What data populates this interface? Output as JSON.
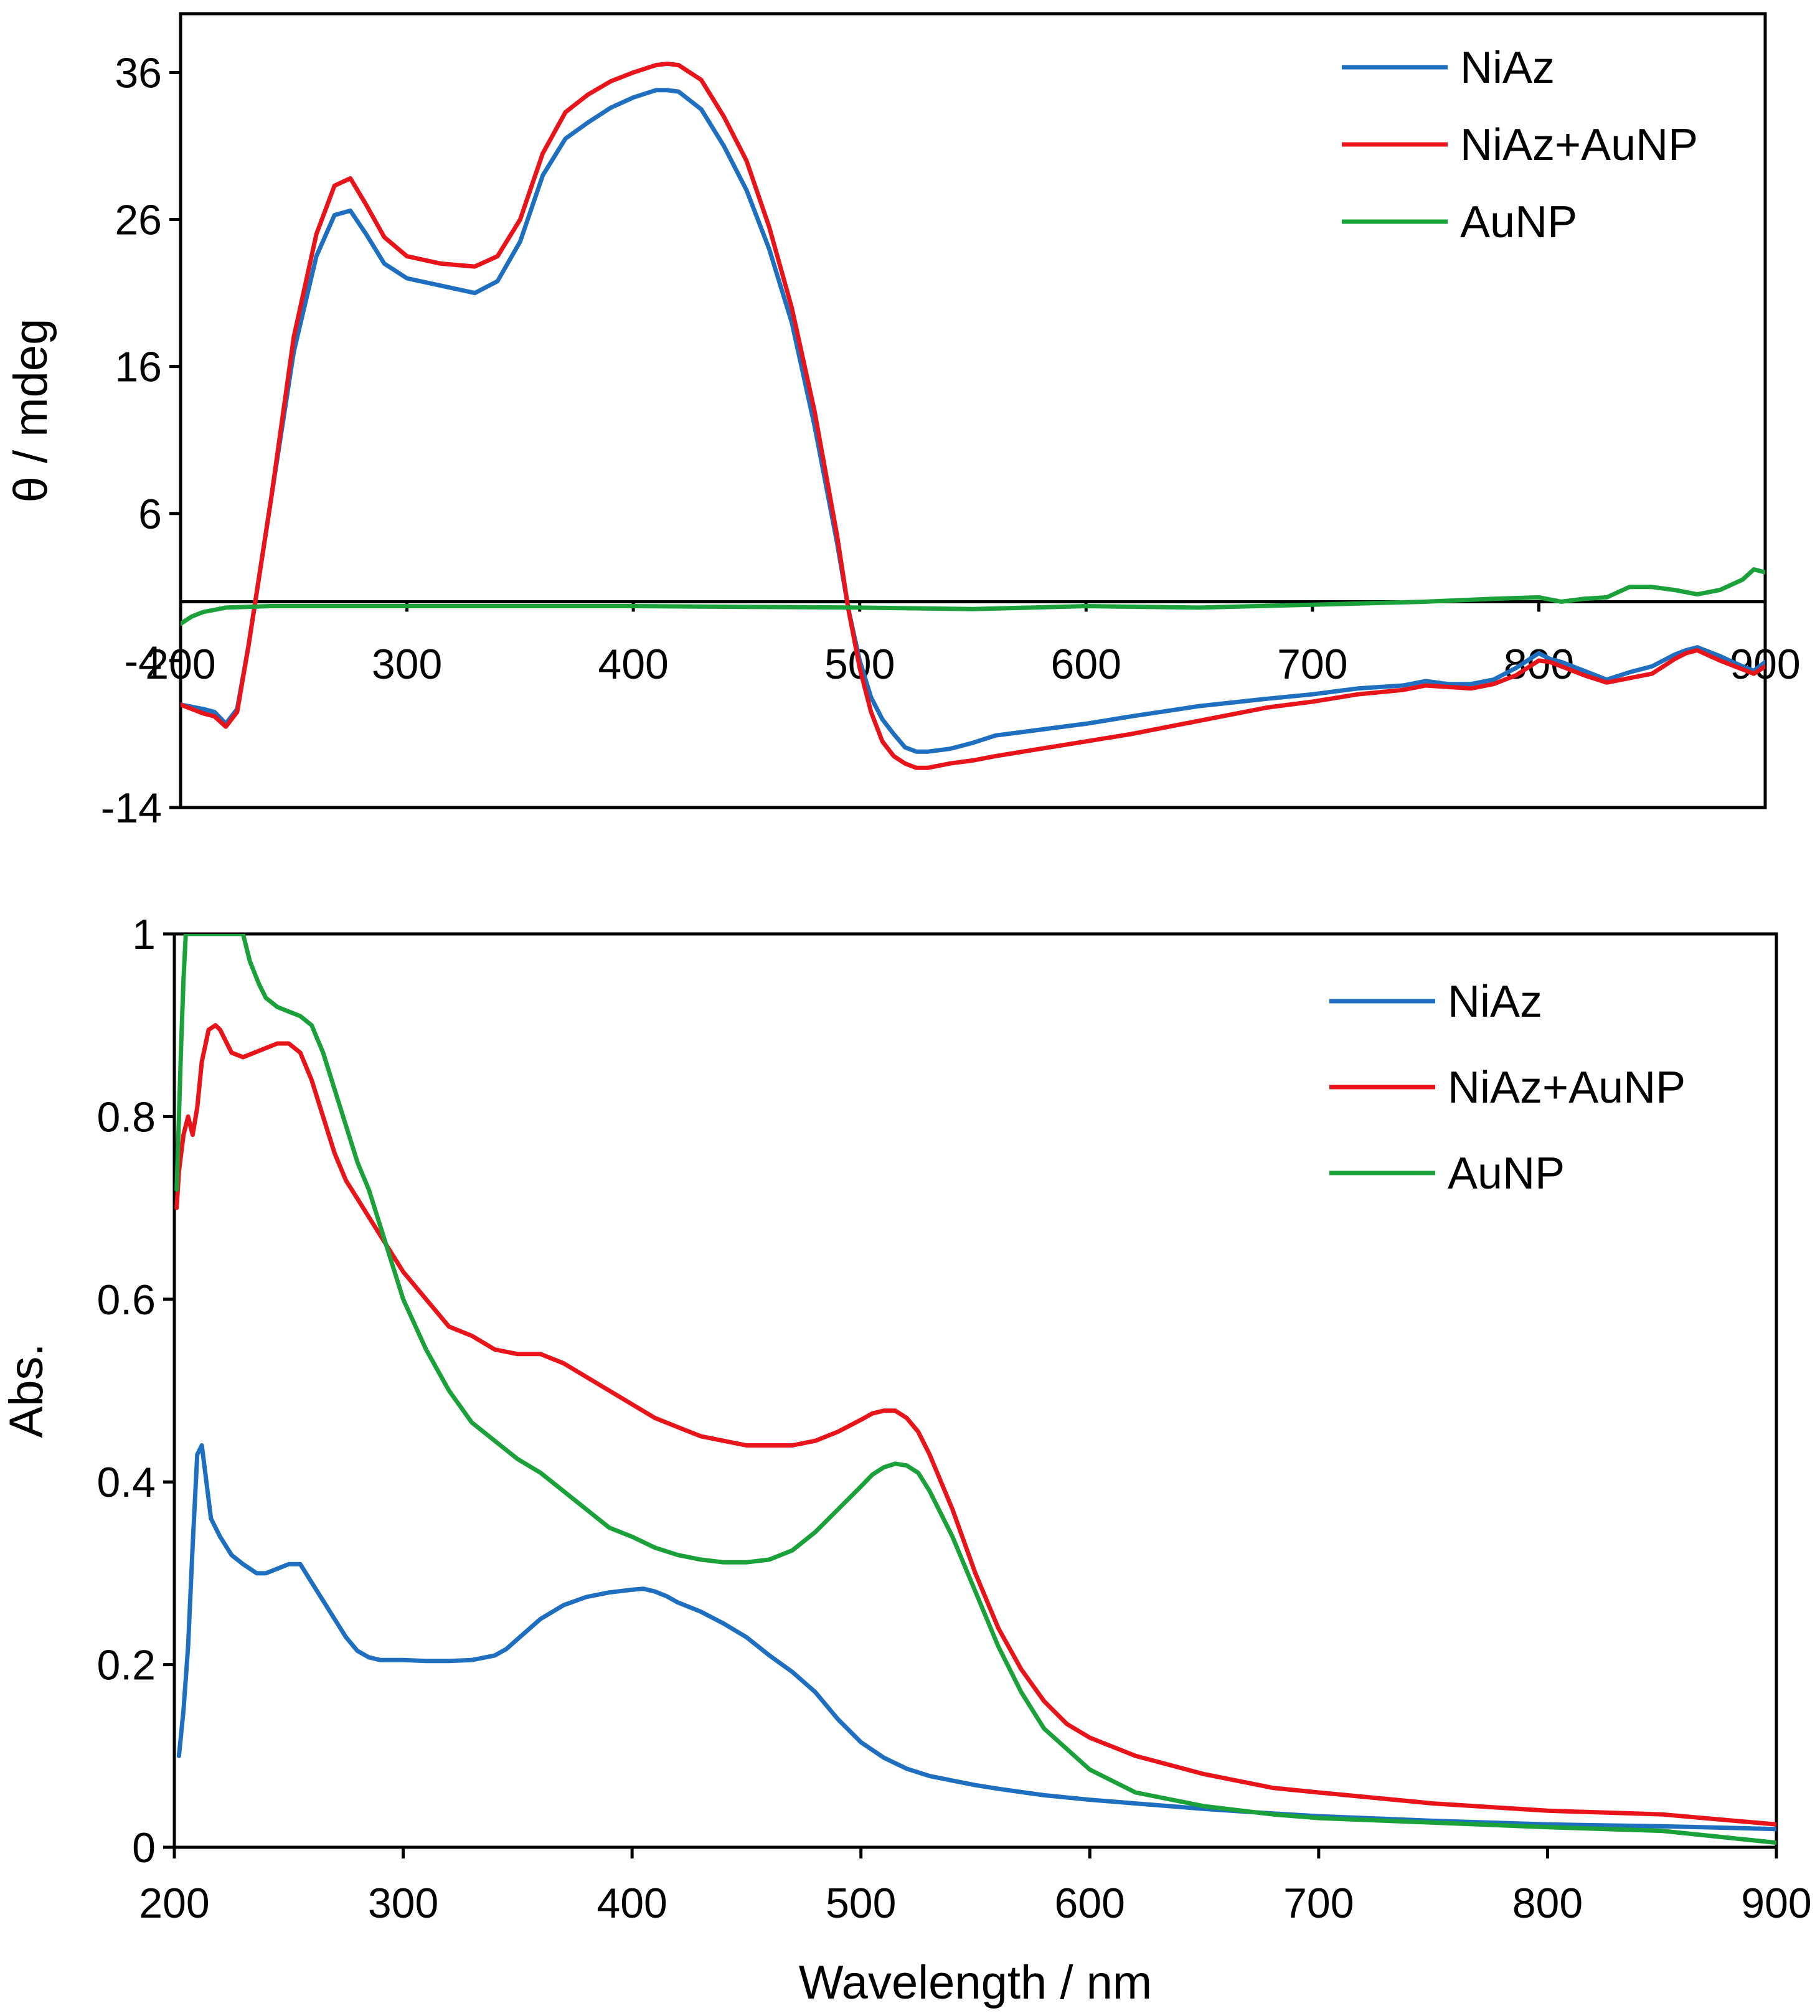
{
  "chart_data": [
    {
      "type": "line",
      "title": "",
      "xlabel": "",
      "ylabel": "θ / mdeg",
      "xlim": [
        200,
        900
      ],
      "ylim": [
        -14,
        40
      ],
      "xticks": [
        200,
        300,
        400,
        500,
        600,
        700,
        800,
        900
      ],
      "yticks": [
        -14,
        -4,
        6,
        16,
        26,
        36
      ],
      "grid": false,
      "zero_line": true,
      "legend_position": "top-right",
      "series": [
        {
          "name": "NiAz",
          "color": "#1f6fc1",
          "x": [
            200,
            210,
            215,
            220,
            225,
            230,
            240,
            250,
            260,
            268,
            275,
            282,
            290,
            300,
            315,
            330,
            340,
            350,
            360,
            370,
            380,
            390,
            400,
            410,
            415,
            420,
            430,
            440,
            450,
            460,
            470,
            480,
            490,
            495,
            500,
            505,
            510,
            515,
            520,
            525,
            530,
            540,
            550,
            560,
            580,
            600,
            620,
            650,
            680,
            700,
            720,
            740,
            750,
            760,
            770,
            780,
            790,
            800,
            805,
            810,
            820,
            830,
            840,
            850,
            860,
            865,
            870,
            880,
            890,
            895,
            900
          ],
          "values": [
            -7,
            -7.3,
            -7.5,
            -8.3,
            -7.3,
            -3,
            7,
            17,
            23.5,
            26.3,
            26.6,
            25,
            23,
            22,
            21.5,
            21,
            21.8,
            24.5,
            29,
            31.5,
            32.6,
            33.6,
            34.3,
            34.8,
            34.8,
            34.7,
            33.5,
            31,
            28,
            24,
            19,
            12,
            4,
            -0.5,
            -4,
            -6.5,
            -8,
            -9,
            -9.9,
            -10.2,
            -10.2,
            -10,
            -9.6,
            -9.1,
            -8.7,
            -8.3,
            -7.8,
            -7.1,
            -6.6,
            -6.3,
            -5.9,
            -5.7,
            -5.4,
            -5.6,
            -5.6,
            -5.3,
            -4.5,
            -3.5,
            -3.9,
            -4.1,
            -4.7,
            -5.3,
            -4.8,
            -4.4,
            -3.6,
            -3.3,
            -3.1,
            -3.7,
            -4.4,
            -4.7,
            -4.1
          ]
        },
        {
          "name": "NiAz+AuNP",
          "color": "#e8141a",
          "x": [
            200,
            210,
            215,
            220,
            225,
            230,
            240,
            250,
            260,
            268,
            275,
            282,
            290,
            300,
            315,
            330,
            340,
            350,
            360,
            370,
            380,
            390,
            400,
            410,
            415,
            420,
            430,
            440,
            450,
            460,
            470,
            480,
            490,
            495,
            500,
            505,
            510,
            515,
            520,
            525,
            530,
            540,
            550,
            560,
            580,
            600,
            620,
            650,
            680,
            700,
            720,
            740,
            750,
            760,
            770,
            780,
            790,
            800,
            805,
            810,
            820,
            830,
            840,
            850,
            860,
            865,
            870,
            880,
            890,
            895,
            900
          ],
          "values": [
            -7,
            -7.6,
            -7.8,
            -8.5,
            -7.5,
            -3,
            7,
            18,
            25,
            28.3,
            28.8,
            27,
            24.8,
            23.5,
            23,
            22.8,
            23.5,
            26,
            30.5,
            33.3,
            34.5,
            35.4,
            36,
            36.5,
            36.6,
            36.5,
            35.5,
            33,
            30,
            25.5,
            20,
            13,
            4.5,
            -0.5,
            -4.5,
            -7.5,
            -9.5,
            -10.5,
            -11,
            -11.3,
            -11.3,
            -11,
            -10.8,
            -10.5,
            -10,
            -9.5,
            -9,
            -8.1,
            -7.2,
            -6.8,
            -6.3,
            -6,
            -5.7,
            -5.8,
            -5.9,
            -5.6,
            -5,
            -4,
            -4.1,
            -4.4,
            -5,
            -5.5,
            -5.2,
            -4.9,
            -3.9,
            -3.5,
            -3.3,
            -4,
            -4.6,
            -4.9,
            -4.4
          ]
        },
        {
          "name": "AuNP",
          "color": "#1aa13a",
          "x": [
            200,
            205,
            210,
            220,
            240,
            300,
            400,
            450,
            500,
            550,
            600,
            650,
            700,
            750,
            780,
            800,
            810,
            820,
            830,
            840,
            850,
            860,
            870,
            880,
            890,
            895,
            900
          ],
          "values": [
            -1.5,
            -1,
            -0.7,
            -0.4,
            -0.3,
            -0.3,
            -0.3,
            -0.35,
            -0.4,
            -0.5,
            -0.3,
            -0.4,
            -0.2,
            0,
            0.2,
            0.3,
            0,
            0.2,
            0.3,
            1,
            1,
            0.8,
            0.5,
            0.8,
            1.5,
            2.2,
            2
          ]
        }
      ]
    },
    {
      "type": "line",
      "title": "",
      "xlabel": "Wavelength / nm",
      "ylabel": "Abs.",
      "xlim": [
        200,
        900
      ],
      "ylim": [
        0,
        1
      ],
      "xticks": [
        200,
        300,
        400,
        500,
        600,
        700,
        800,
        900
      ],
      "yticks": [
        0,
        0.2,
        0.4,
        0.6,
        0.8,
        1
      ],
      "grid": false,
      "legend_position": "top-right",
      "series": [
        {
          "name": "NiAz",
          "color": "#1f6fc1",
          "x": [
            202,
            204,
            206,
            208,
            210,
            212,
            214,
            216,
            220,
            225,
            230,
            236,
            240,
            245,
            250,
            255,
            260,
            265,
            270,
            275,
            280,
            285,
            290,
            300,
            310,
            320,
            330,
            340,
            345,
            350,
            360,
            370,
            380,
            390,
            400,
            405,
            410,
            415,
            420,
            430,
            440,
            450,
            460,
            470,
            480,
            490,
            500,
            510,
            520,
            530,
            540,
            550,
            560,
            580,
            600,
            620,
            650,
            680,
            700,
            750,
            800,
            850,
            900
          ],
          "values": [
            0.1,
            0.15,
            0.22,
            0.33,
            0.43,
            0.44,
            0.4,
            0.36,
            0.34,
            0.32,
            0.31,
            0.3,
            0.3,
            0.305,
            0.31,
            0.31,
            0.29,
            0.27,
            0.25,
            0.23,
            0.215,
            0.208,
            0.205,
            0.205,
            0.204,
            0.204,
            0.205,
            0.21,
            0.217,
            0.228,
            0.25,
            0.265,
            0.274,
            0.279,
            0.282,
            0.283,
            0.28,
            0.275,
            0.268,
            0.258,
            0.245,
            0.23,
            0.21,
            0.192,
            0.17,
            0.14,
            0.115,
            0.098,
            0.086,
            0.078,
            0.073,
            0.068,
            0.064,
            0.057,
            0.052,
            0.048,
            0.042,
            0.037,
            0.034,
            0.029,
            0.025,
            0.023,
            0.02
          ]
        },
        {
          "name": "NiAz+AuNP",
          "color": "#e8141a",
          "x": [
            201,
            202,
            204,
            206,
            208,
            210,
            212,
            215,
            218,
            220,
            225,
            230,
            235,
            240,
            245,
            250,
            255,
            260,
            265,
            270,
            275,
            280,
            285,
            290,
            300,
            310,
            320,
            330,
            340,
            350,
            360,
            365,
            370,
            380,
            390,
            400,
            410,
            420,
            430,
            440,
            450,
            460,
            470,
            480,
            490,
            500,
            505,
            510,
            515,
            520,
            525,
            530,
            540,
            550,
            560,
            570,
            580,
            590,
            600,
            620,
            650,
            680,
            700,
            750,
            800,
            850,
            900
          ],
          "values": [
            0.7,
            0.74,
            0.78,
            0.8,
            0.78,
            0.81,
            0.86,
            0.895,
            0.9,
            0.895,
            0.87,
            0.865,
            0.87,
            0.875,
            0.88,
            0.88,
            0.87,
            0.84,
            0.8,
            0.76,
            0.73,
            0.71,
            0.69,
            0.67,
            0.63,
            0.6,
            0.57,
            0.56,
            0.545,
            0.54,
            0.54,
            0.535,
            0.53,
            0.515,
            0.5,
            0.485,
            0.47,
            0.46,
            0.45,
            0.445,
            0.44,
            0.44,
            0.44,
            0.445,
            0.455,
            0.468,
            0.475,
            0.478,
            0.478,
            0.47,
            0.455,
            0.43,
            0.37,
            0.3,
            0.24,
            0.195,
            0.16,
            0.135,
            0.12,
            0.1,
            0.08,
            0.065,
            0.06,
            0.048,
            0.04,
            0.036,
            0.025
          ]
        },
        {
          "name": "AuNP",
          "color": "#1aa13a",
          "x": [
            201,
            202,
            203,
            204,
            205,
            206,
            210,
            220,
            225,
            230,
            233,
            237,
            240,
            245,
            250,
            255,
            260,
            265,
            270,
            275,
            280,
            285,
            290,
            300,
            310,
            320,
            330,
            340,
            350,
            360,
            370,
            380,
            390,
            400,
            410,
            420,
            430,
            440,
            450,
            460,
            470,
            480,
            490,
            500,
            505,
            510,
            515,
            520,
            525,
            530,
            540,
            550,
            560,
            570,
            580,
            600,
            620,
            650,
            680,
            700,
            750,
            800,
            850,
            900
          ],
          "values": [
            0.72,
            0.8,
            0.88,
            0.95,
            1,
            1,
            1,
            1,
            1,
            1,
            0.97,
            0.945,
            0.93,
            0.92,
            0.915,
            0.91,
            0.9,
            0.87,
            0.83,
            0.79,
            0.75,
            0.72,
            0.68,
            0.6,
            0.545,
            0.5,
            0.465,
            0.445,
            0.425,
            0.41,
            0.39,
            0.37,
            0.35,
            0.34,
            0.328,
            0.32,
            0.315,
            0.312,
            0.312,
            0.315,
            0.325,
            0.345,
            0.37,
            0.395,
            0.408,
            0.416,
            0.42,
            0.418,
            0.41,
            0.39,
            0.34,
            0.28,
            0.22,
            0.17,
            0.13,
            0.085,
            0.06,
            0.045,
            0.036,
            0.032,
            0.027,
            0.022,
            0.018,
            0.005
          ]
        }
      ]
    }
  ]
}
